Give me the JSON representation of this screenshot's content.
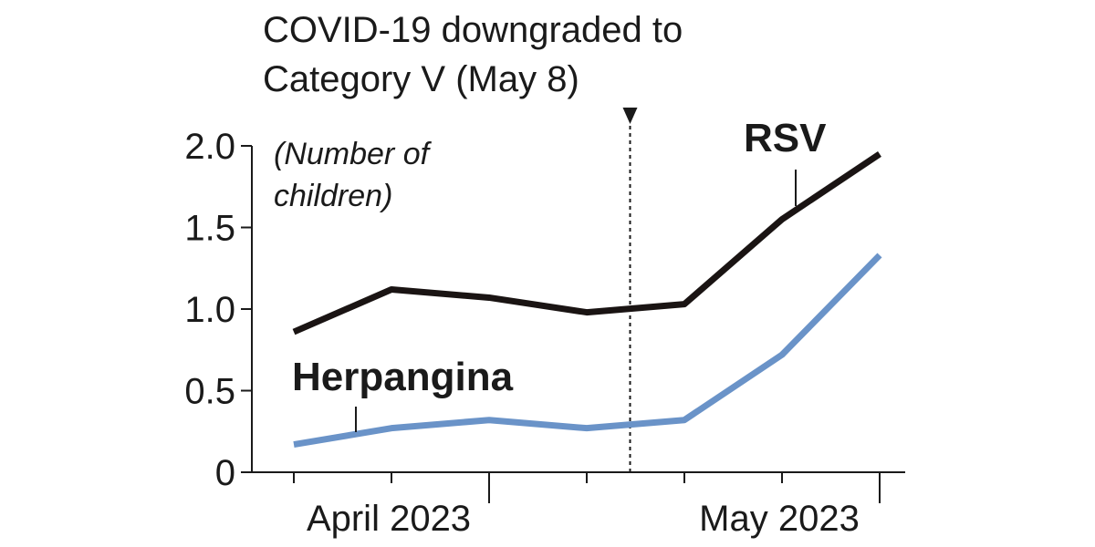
{
  "chart_data": {
    "type": "line",
    "annotation": {
      "lines": [
        "COVID-19 downgraded to",
        "Category V (May 8)"
      ],
      "x": 3.5
    },
    "unit_label": [
      "(Number of",
      "children)"
    ],
    "y_ticks": [
      "0",
      "0.5",
      "1.0",
      "1.5",
      "2.0"
    ],
    "ylim": [
      0,
      2.0
    ],
    "x_points": [
      0,
      1,
      2,
      3,
      4,
      5,
      6
    ],
    "x_month_labels": [
      {
        "label": "April 2023",
        "x": 1
      },
      {
        "label": "May 2023",
        "x": 5
      }
    ],
    "series": [
      {
        "name": "RSV",
        "color": "#1a1413",
        "values": [
          0.86,
          1.12,
          1.07,
          0.98,
          1.03,
          1.55,
          1.95
        ]
      },
      {
        "name": "Herpangina",
        "color": "#6a93c8",
        "values": [
          0.17,
          0.27,
          0.32,
          0.27,
          0.32,
          0.72,
          1.33
        ]
      }
    ],
    "grid": false
  }
}
